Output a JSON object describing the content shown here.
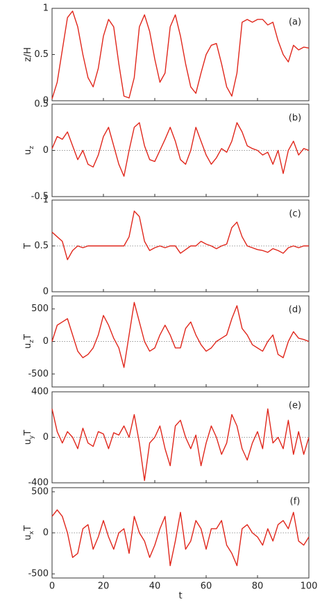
{
  "chart_data": [
    {
      "type": "line",
      "annotation": "(a)",
      "ylabel": [
        "z/H"
      ],
      "color": "#e0261b",
      "x": [
        0,
        2,
        4,
        6,
        8,
        10,
        12,
        14,
        16,
        18,
        20,
        22,
        24,
        26,
        28,
        30,
        32,
        34,
        36,
        38,
        40,
        42,
        44,
        46,
        48,
        50,
        52,
        54,
        56,
        58,
        60,
        62,
        64,
        66,
        68,
        70,
        72,
        74,
        76,
        78,
        80,
        82,
        84,
        86,
        88,
        90,
        92,
        94,
        96,
        98,
        100
      ],
      "values": [
        0.02,
        0.2,
        0.55,
        0.9,
        0.97,
        0.8,
        0.5,
        0.25,
        0.15,
        0.35,
        0.7,
        0.88,
        0.8,
        0.4,
        0.05,
        0.03,
        0.25,
        0.8,
        0.93,
        0.75,
        0.45,
        0.2,
        0.3,
        0.8,
        0.93,
        0.7,
        0.4,
        0.15,
        0.08,
        0.3,
        0.5,
        0.6,
        0.62,
        0.4,
        0.15,
        0.05,
        0.3,
        0.85,
        0.88,
        0.85,
        0.88,
        0.88,
        0.82,
        0.85,
        0.65,
        0.5,
        0.42,
        0.6,
        0.55,
        0.58,
        0.57
      ],
      "xlim": [
        0,
        100
      ],
      "xticks": [
        0,
        20,
        40,
        60,
        80,
        100
      ],
      "ylim": [
        0,
        1
      ],
      "yticks": [
        0,
        0.5,
        1
      ]
    },
    {
      "type": "line",
      "annotation": "(b)",
      "ylabel": [
        "u",
        "z"
      ],
      "color": "#e0261b",
      "reference_line": 0,
      "x": [
        0,
        2,
        4,
        6,
        8,
        10,
        12,
        14,
        16,
        18,
        20,
        22,
        24,
        26,
        28,
        30,
        32,
        34,
        36,
        38,
        40,
        42,
        44,
        46,
        48,
        50,
        52,
        54,
        56,
        58,
        60,
        62,
        64,
        66,
        68,
        70,
        72,
        74,
        76,
        78,
        80,
        82,
        84,
        86,
        88,
        90,
        92,
        94,
        96,
        98,
        100
      ],
      "values": [
        0.02,
        0.15,
        0.12,
        0.2,
        0.05,
        -0.1,
        0.0,
        -0.15,
        -0.18,
        -0.05,
        0.15,
        0.25,
        0.05,
        -0.15,
        -0.28,
        0.0,
        0.25,
        0.3,
        0.05,
        -0.1,
        -0.12,
        0.0,
        0.12,
        0.25,
        0.1,
        -0.1,
        -0.15,
        0.0,
        0.25,
        0.1,
        -0.05,
        -0.15,
        -0.08,
        0.02,
        -0.02,
        0.1,
        0.3,
        0.2,
        0.05,
        0.02,
        0.0,
        -0.05,
        -0.02,
        -0.15,
        0.0,
        -0.25,
        0.0,
        0.1,
        -0.05,
        0.02,
        0.0
      ],
      "xlim": [
        0,
        100
      ],
      "xticks": [
        0,
        20,
        40,
        60,
        80,
        100
      ],
      "ylim": [
        -0.5,
        0.5
      ],
      "yticks": [
        -0.5,
        0,
        0.5
      ]
    },
    {
      "type": "line",
      "annotation": "(c)",
      "ylabel": [
        "T"
      ],
      "color": "#e0261b",
      "reference_line": 0.5,
      "x": [
        0,
        2,
        4,
        6,
        8,
        10,
        12,
        14,
        16,
        18,
        20,
        22,
        24,
        26,
        28,
        30,
        32,
        34,
        36,
        38,
        40,
        42,
        44,
        46,
        48,
        50,
        52,
        54,
        56,
        58,
        60,
        62,
        64,
        66,
        68,
        70,
        72,
        74,
        76,
        78,
        80,
        82,
        84,
        86,
        88,
        90,
        92,
        94,
        96,
        98,
        100
      ],
      "values": [
        0.65,
        0.6,
        0.55,
        0.35,
        0.45,
        0.5,
        0.48,
        0.5,
        0.5,
        0.5,
        0.5,
        0.5,
        0.5,
        0.5,
        0.5,
        0.6,
        0.88,
        0.82,
        0.55,
        0.45,
        0.48,
        0.5,
        0.48,
        0.5,
        0.5,
        0.42,
        0.46,
        0.5,
        0.5,
        0.55,
        0.52,
        0.5,
        0.47,
        0.5,
        0.52,
        0.7,
        0.76,
        0.6,
        0.5,
        0.48,
        0.46,
        0.45,
        0.43,
        0.47,
        0.45,
        0.42,
        0.48,
        0.5,
        0.48,
        0.5,
        0.5
      ],
      "xlim": [
        0,
        100
      ],
      "xticks": [
        0,
        20,
        40,
        60,
        80,
        100
      ],
      "ylim": [
        0,
        1
      ],
      "yticks": [
        0,
        0.5,
        1
      ]
    },
    {
      "type": "line",
      "annotation": "(d)",
      "ylabel": [
        "u",
        "z",
        "T"
      ],
      "color": "#e0261b",
      "reference_line": 0,
      "x": [
        0,
        2,
        4,
        6,
        8,
        10,
        12,
        14,
        16,
        18,
        20,
        22,
        24,
        26,
        28,
        30,
        32,
        34,
        36,
        38,
        40,
        42,
        44,
        46,
        48,
        50,
        52,
        54,
        56,
        58,
        60,
        62,
        64,
        66,
        68,
        70,
        72,
        74,
        76,
        78,
        80,
        82,
        84,
        86,
        88,
        90,
        92,
        94,
        96,
        98,
        100
      ],
      "values": [
        0,
        250,
        300,
        350,
        100,
        -150,
        -250,
        -200,
        -100,
        100,
        400,
        250,
        50,
        -100,
        -400,
        100,
        600,
        300,
        0,
        -150,
        -100,
        100,
        250,
        100,
        -100,
        -100,
        200,
        300,
        100,
        -50,
        -150,
        -100,
        0,
        50,
        100,
        350,
        550,
        200,
        100,
        -50,
        -100,
        -150,
        0,
        100,
        -200,
        -250,
        0,
        150,
        50,
        30,
        0
      ],
      "xlim": [
        0,
        100
      ],
      "xticks": [
        0,
        20,
        40,
        60,
        80,
        100
      ],
      "ylim": [
        -700,
        700
      ],
      "yticks": [
        -500,
        0,
        500
      ]
    },
    {
      "type": "line",
      "annotation": "(e)",
      "ylabel": [
        "u",
        "y",
        "T"
      ],
      "color": "#e0261b",
      "reference_line": 0,
      "x": [
        0,
        2,
        4,
        6,
        8,
        10,
        12,
        14,
        16,
        18,
        20,
        22,
        24,
        26,
        28,
        30,
        32,
        34,
        36,
        38,
        40,
        42,
        44,
        46,
        48,
        50,
        52,
        54,
        56,
        58,
        60,
        62,
        64,
        66,
        68,
        70,
        72,
        74,
        76,
        78,
        80,
        82,
        84,
        86,
        88,
        90,
        92,
        94,
        96,
        98,
        100
      ],
      "values": [
        250,
        50,
        -50,
        50,
        0,
        -100,
        80,
        -50,
        -80,
        50,
        30,
        -100,
        40,
        20,
        100,
        0,
        200,
        -50,
        -380,
        -50,
        0,
        100,
        -100,
        -250,
        100,
        150,
        0,
        -100,
        20,
        -250,
        -50,
        100,
        0,
        -150,
        -50,
        200,
        100,
        -100,
        -200,
        -50,
        50,
        -100,
        250,
        -50,
        0,
        -100,
        150,
        -150,
        50,
        -150,
        0
      ],
      "xlim": [
        0,
        100
      ],
      "xticks": [
        0,
        20,
        40,
        60,
        80,
        100
      ],
      "ylim": [
        -400,
        400
      ],
      "yticks": [
        -400,
        0,
        400
      ]
    },
    {
      "type": "line",
      "annotation": "(f)",
      "ylabel": [
        "u",
        "x",
        "T"
      ],
      "xlabel": "t",
      "xtick_labels": true,
      "color": "#e0261b",
      "reference_line": 0,
      "x": [
        0,
        2,
        4,
        6,
        8,
        10,
        12,
        14,
        16,
        18,
        20,
        22,
        24,
        26,
        28,
        30,
        32,
        34,
        36,
        38,
        40,
        42,
        44,
        46,
        48,
        50,
        52,
        54,
        56,
        58,
        60,
        62,
        64,
        66,
        68,
        70,
        72,
        74,
        76,
        78,
        80,
        82,
        84,
        86,
        88,
        90,
        92,
        94,
        96,
        98,
        100
      ],
      "values": [
        200,
        280,
        200,
        0,
        -300,
        -250,
        50,
        100,
        -200,
        -50,
        150,
        -50,
        -200,
        0,
        50,
        -250,
        200,
        0,
        -100,
        -300,
        -150,
        50,
        200,
        -400,
        -100,
        250,
        -200,
        -100,
        150,
        50,
        -200,
        50,
        50,
        150,
        -150,
        -250,
        -400,
        50,
        100,
        0,
        -50,
        -150,
        50,
        -100,
        100,
        150,
        50,
        250,
        -100,
        -150,
        -50
      ],
      "xlim": [
        0,
        100
      ],
      "xticks": [
        0,
        20,
        40,
        60,
        80,
        100
      ],
      "ylim": [
        -550,
        550
      ],
      "yticks": [
        -500,
        0,
        500
      ]
    }
  ]
}
